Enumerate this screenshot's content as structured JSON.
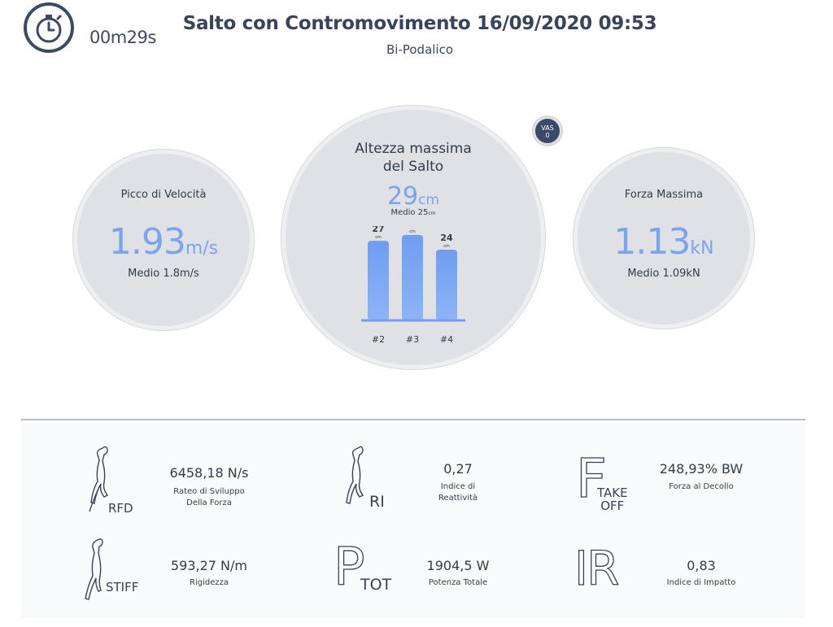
{
  "header": {
    "timer": "00m29s",
    "title": "Salto con Contromovimento 16/09/2020 09:53",
    "subtitle": "Bi-Podalico"
  },
  "velocity": {
    "title": "Picco di Velocità",
    "value": "1.93",
    "unit": "m/s",
    "average": "Medio 1.8m/s"
  },
  "height": {
    "title_line1": "Altezza massima",
    "title_line2": "del Salto",
    "value": "29",
    "unit": "cm",
    "average_label": "Medio 25",
    "average_unit": "cm"
  },
  "force": {
    "title": "Forza Massima",
    "value": "1.13",
    "unit": "kN",
    "average": "Medio 1.09kN"
  },
  "vas_badge": {
    "label": "VAS",
    "value": "0"
  },
  "chart_data": {
    "type": "bar",
    "categories": [
      "#2",
      "#3",
      "#4"
    ],
    "values": [
      27,
      29,
      24
    ],
    "value_unit": "cm",
    "ylim": [
      0,
      32
    ],
    "grid": false,
    "bar_color": "#6f9df0"
  },
  "metrics": {
    "rfd": {
      "tag": "RFD",
      "value": "6458,18 N/s",
      "label_line1": "Rateo di Sviluppo",
      "label_line2": "Della Forza",
      "icon": "jumper-icon"
    },
    "ri": {
      "tag": "RI",
      "value": "0,27",
      "label_line1": "Indice di",
      "label_line2": "Reattività",
      "icon": "jumper-icon"
    },
    "takeoff": {
      "glyph": "F",
      "tag_line1": "TAKE",
      "tag_line2": "OFF",
      "value": "248,93% BW",
      "label": "Forza al Decollo"
    },
    "stiff": {
      "tag": "STIFF",
      "value": "593,27 N/m",
      "label": "Rigidezza",
      "icon": "jumper-icon"
    },
    "ptot": {
      "glyph": "P",
      "tag": "TOT",
      "value": "1904,5 W",
      "label": "Potenza Totale"
    },
    "ir": {
      "glyph": "IR",
      "value": "0,83",
      "label": "Indice di Impatto"
    }
  },
  "colors": {
    "accent": "#7aa3f0",
    "bar": "#6f9df0",
    "circle_fill": "#dfe1e4",
    "dark_navy": "#3c4a6a",
    "text": "#333c4a"
  }
}
